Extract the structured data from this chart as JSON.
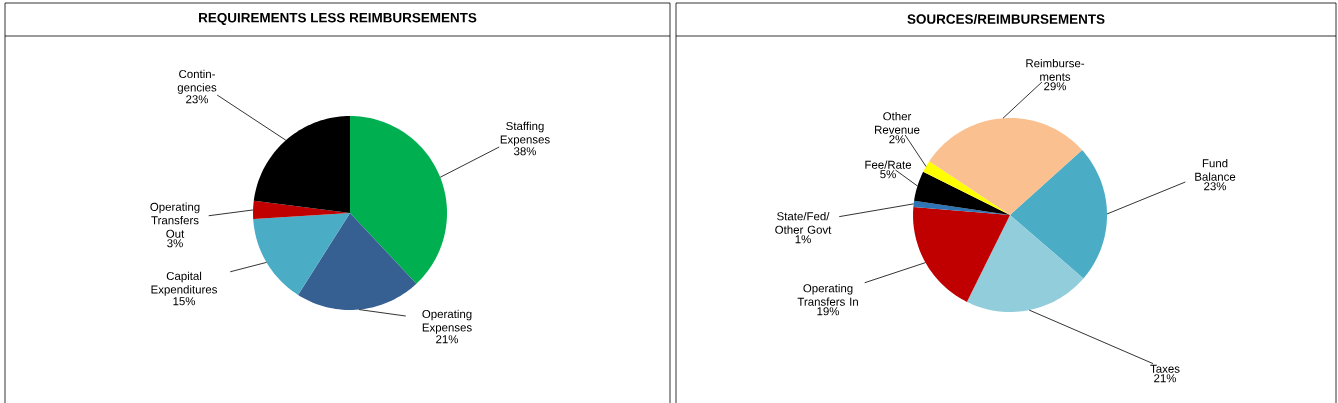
{
  "chart_data": [
    {
      "type": "pie",
      "title": "REQUIREMENTS LESS REIMBURSEMENTS",
      "categories": [
        "Staffing Expenses",
        "Operating Expenses",
        "Capital Expenditures",
        "Operating Transfers Out",
        "Contin-gencies"
      ],
      "values": [
        38,
        21,
        15,
        3,
        23
      ],
      "value_labels": [
        "38%",
        "21%",
        "15%",
        "3%",
        "23%"
      ],
      "colors": [
        "#00b050",
        "#376092",
        "#4bacc6",
        "#c00000",
        "#000000"
      ]
    },
    {
      "type": "pie",
      "title": "SOURCES/REIMBURSEMENTS",
      "categories": [
        "Fund Balance",
        "Taxes",
        "Operating Transfers In",
        "State/Fed/ Other Govt",
        "Fee/Rate",
        "Other Revenue",
        "Reimburse-ments"
      ],
      "values": [
        23,
        21,
        19,
        1,
        5,
        2,
        29
      ],
      "value_labels": [
        "23%",
        "21%",
        "19%",
        "1%",
        "5%",
        "2%",
        "29%"
      ],
      "colors": [
        "#4bacc6",
        "#92cddc",
        "#c00000",
        "#2e75b6",
        "#000000",
        "#ffff00",
        "#fac090"
      ]
    }
  ]
}
